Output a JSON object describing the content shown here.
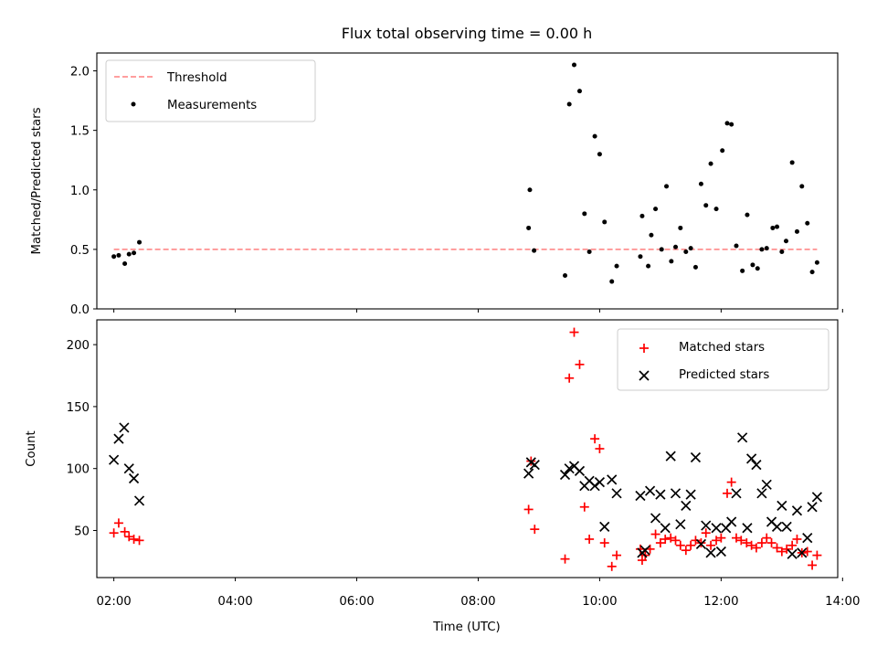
{
  "title": "Flux total observing time = 0.00 h",
  "colors": {
    "threshold": "#ff7f7f",
    "measurements": "#000000",
    "matched": "#ff0000",
    "predicted": "#000000"
  },
  "chart_data": [
    {
      "type": "scatter",
      "ylabel": "Matched/Predicted stars",
      "xlim": [
        1.72,
        13.92
      ],
      "ylim": [
        0.0,
        2.15
      ],
      "yticks": [
        0.0,
        0.5,
        1.0,
        1.5,
        2.0
      ],
      "ytick_labels": [
        "0.0",
        "0.5",
        "1.0",
        "1.5",
        "2.0"
      ],
      "xticks": [
        2,
        4,
        6,
        8,
        10,
        12,
        14
      ],
      "legend_position": "top-left",
      "grid": false,
      "series": [
        {
          "name": "Threshold",
          "type": "line",
          "style": "dashed",
          "x": [
            2.0,
            13.58
          ],
          "y": [
            0.5,
            0.5
          ]
        },
        {
          "name": "Measurements",
          "type": "scatter",
          "marker": "dot",
          "points": [
            [
              2.0,
              0.44
            ],
            [
              2.08,
              0.45
            ],
            [
              2.18,
              0.38
            ],
            [
              2.25,
              0.46
            ],
            [
              2.33,
              0.47
            ],
            [
              2.42,
              0.56
            ],
            [
              8.83,
              0.68
            ],
            [
              8.85,
              1.0
            ],
            [
              8.92,
              0.49
            ],
            [
              9.43,
              0.28
            ],
            [
              9.5,
              1.72
            ],
            [
              9.58,
              2.05
            ],
            [
              9.67,
              1.83
            ],
            [
              9.75,
              0.8
            ],
            [
              9.83,
              0.48
            ],
            [
              9.92,
              1.45
            ],
            [
              10.0,
              1.3
            ],
            [
              10.08,
              0.73
            ],
            [
              10.2,
              0.23
            ],
            [
              10.28,
              0.36
            ],
            [
              10.67,
              0.44
            ],
            [
              10.7,
              0.78
            ],
            [
              10.8,
              0.36
            ],
            [
              10.85,
              0.62
            ],
            [
              10.92,
              0.84
            ],
            [
              11.02,
              0.5
            ],
            [
              11.1,
              1.03
            ],
            [
              11.18,
              0.4
            ],
            [
              11.25,
              0.52
            ],
            [
              11.33,
              0.68
            ],
            [
              11.42,
              0.48
            ],
            [
              11.5,
              0.51
            ],
            [
              11.58,
              0.35
            ],
            [
              11.67,
              1.05
            ],
            [
              11.75,
              0.87
            ],
            [
              11.83,
              1.22
            ],
            [
              11.92,
              0.84
            ],
            [
              12.02,
              1.33
            ],
            [
              12.1,
              1.56
            ],
            [
              12.17,
              1.55
            ],
            [
              12.25,
              0.53
            ],
            [
              12.35,
              0.32
            ],
            [
              12.43,
              0.79
            ],
            [
              12.52,
              0.37
            ],
            [
              12.6,
              0.34
            ],
            [
              12.67,
              0.5
            ],
            [
              12.75,
              0.51
            ],
            [
              12.85,
              0.68
            ],
            [
              12.92,
              0.69
            ],
            [
              13.0,
              0.48
            ],
            [
              13.07,
              0.57
            ],
            [
              13.17,
              1.23
            ],
            [
              13.25,
              0.65
            ],
            [
              13.33,
              1.03
            ],
            [
              13.42,
              0.72
            ],
            [
              13.5,
              0.31
            ],
            [
              13.58,
              0.39
            ]
          ]
        }
      ]
    },
    {
      "type": "scatter",
      "xlabel": "Time (UTC)",
      "ylabel": "Count",
      "xlim": [
        1.72,
        13.92
      ],
      "ylim": [
        12,
        220
      ],
      "yticks": [
        50,
        100,
        150,
        200
      ],
      "ytick_labels": [
        "50",
        "100",
        "150",
        "200"
      ],
      "xticks": [
        2,
        4,
        6,
        8,
        10,
        12,
        14
      ],
      "xtick_labels": [
        "02:00",
        "04:00",
        "06:00",
        "08:00",
        "10:00",
        "12:00",
        "14:00"
      ],
      "legend_position": "top-right",
      "grid": false,
      "series": [
        {
          "name": "Matched stars",
          "type": "scatter",
          "marker": "plus",
          "points": [
            [
              2.0,
              48
            ],
            [
              2.08,
              56
            ],
            [
              2.18,
              49
            ],
            [
              2.25,
              45
            ],
            [
              2.33,
              43
            ],
            [
              2.42,
              42
            ],
            [
              8.83,
              67
            ],
            [
              8.87,
              106
            ],
            [
              8.93,
              51
            ],
            [
              9.43,
              27
            ],
            [
              9.5,
              173
            ],
            [
              9.58,
              210
            ],
            [
              9.67,
              184
            ],
            [
              9.75,
              69
            ],
            [
              9.83,
              43
            ],
            [
              9.92,
              124
            ],
            [
              10.0,
              116
            ],
            [
              10.08,
              40
            ],
            [
              10.2,
              21
            ],
            [
              10.28,
              30
            ],
            [
              10.67,
              35
            ],
            [
              10.7,
              26
            ],
            [
              10.75,
              30
            ],
            [
              10.83,
              35
            ],
            [
              10.92,
              47
            ],
            [
              11.0,
              40
            ],
            [
              11.08,
              43
            ],
            [
              11.17,
              44
            ],
            [
              11.25,
              42
            ],
            [
              11.33,
              38
            ],
            [
              11.42,
              34
            ],
            [
              11.5,
              38
            ],
            [
              11.58,
              42
            ],
            [
              11.67,
              40
            ],
            [
              11.75,
              48
            ],
            [
              11.83,
              38
            ],
            [
              11.92,
              42
            ],
            [
              12.0,
              44
            ],
            [
              12.1,
              80
            ],
            [
              12.17,
              89
            ],
            [
              12.25,
              44
            ],
            [
              12.33,
              42
            ],
            [
              12.42,
              40
            ],
            [
              12.5,
              38
            ],
            [
              12.58,
              36
            ],
            [
              12.67,
              40
            ],
            [
              12.75,
              44
            ],
            [
              12.83,
              40
            ],
            [
              12.92,
              36
            ],
            [
              13.0,
              33
            ],
            [
              13.08,
              35
            ],
            [
              13.17,
              38
            ],
            [
              13.25,
              43
            ],
            [
              13.33,
              32
            ],
            [
              13.42,
              33
            ],
            [
              13.5,
              22
            ],
            [
              13.58,
              30
            ]
          ]
        },
        {
          "name": "Predicted stars",
          "type": "scatter",
          "marker": "x",
          "points": [
            [
              2.0,
              107
            ],
            [
              2.08,
              124
            ],
            [
              2.17,
              133
            ],
            [
              2.25,
              100
            ],
            [
              2.33,
              92
            ],
            [
              2.42,
              74
            ],
            [
              8.83,
              96
            ],
            [
              8.87,
              105
            ],
            [
              8.93,
              103
            ],
            [
              9.43,
              95
            ],
            [
              9.5,
              100
            ],
            [
              9.58,
              102
            ],
            [
              9.67,
              98
            ],
            [
              9.75,
              86
            ],
            [
              9.83,
              90
            ],
            [
              9.92,
              86
            ],
            [
              10.0,
              89
            ],
            [
              10.08,
              53
            ],
            [
              10.2,
              91
            ],
            [
              10.28,
              80
            ],
            [
              10.67,
              78
            ],
            [
              10.7,
              32
            ],
            [
              10.75,
              34
            ],
            [
              10.83,
              82
            ],
            [
              10.92,
              60
            ],
            [
              11.0,
              79
            ],
            [
              11.08,
              52
            ],
            [
              11.17,
              110
            ],
            [
              11.25,
              80
            ],
            [
              11.33,
              55
            ],
            [
              11.42,
              70
            ],
            [
              11.5,
              79
            ],
            [
              11.58,
              109
            ],
            [
              11.67,
              39
            ],
            [
              11.75,
              54
            ],
            [
              11.83,
              32
            ],
            [
              11.92,
              52
            ],
            [
              12.0,
              33
            ],
            [
              12.08,
              52
            ],
            [
              12.17,
              57
            ],
            [
              12.25,
              80
            ],
            [
              12.35,
              125
            ],
            [
              12.43,
              52
            ],
            [
              12.5,
              108
            ],
            [
              12.58,
              103
            ],
            [
              12.67,
              80
            ],
            [
              12.75,
              87
            ],
            [
              12.83,
              57
            ],
            [
              12.92,
              53
            ],
            [
              13.0,
              70
            ],
            [
              13.08,
              53
            ],
            [
              13.17,
              31
            ],
            [
              13.25,
              66
            ],
            [
              13.33,
              32
            ],
            [
              13.42,
              44
            ],
            [
              13.5,
              69
            ],
            [
              13.58,
              77
            ]
          ]
        }
      ]
    }
  ]
}
